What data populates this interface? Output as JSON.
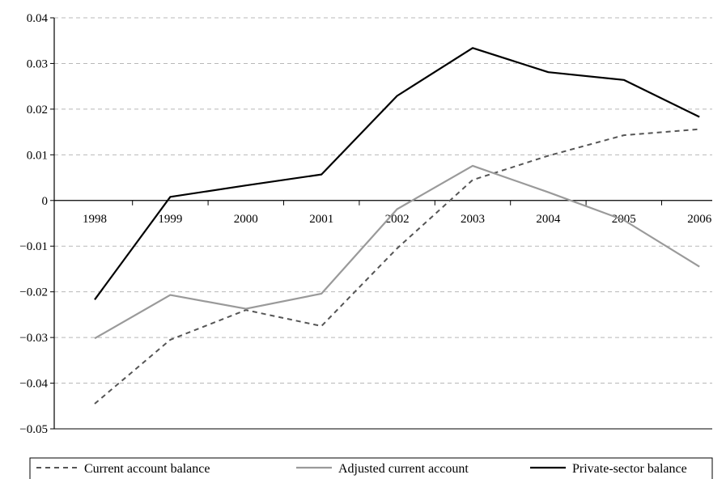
{
  "chart_data": {
    "type": "line",
    "title": "",
    "xlabel": "",
    "ylabel": "",
    "categories": [
      "1998",
      "1999",
      "2000",
      "2001",
      "2002",
      "2003",
      "2004",
      "2005",
      "2006"
    ],
    "ylim": [
      -0.05,
      0.04
    ],
    "yticks": [
      0.04,
      0.03,
      0.02,
      0.01,
      0,
      -0.01,
      -0.02,
      -0.03,
      -0.04,
      -0.05
    ],
    "ytick_labels": [
      "0.04",
      "0.03",
      "0.02",
      "0.01",
      "0",
      "−0.01",
      "−0.02",
      "−0.03",
      "−0.04",
      "−0.05"
    ],
    "grid": "horizontal dashed",
    "legend_position": "bottom",
    "series": [
      {
        "name": "Current account balance",
        "values": [
          -0.0445,
          -0.0305,
          -0.024,
          -0.0275,
          -0.0105,
          0.0045,
          0.0098,
          0.0143,
          0.0156
        ],
        "color": "#555555",
        "dash": "6,5",
        "width": 2
      },
      {
        "name": "Adjusted current account",
        "values": [
          -0.0302,
          -0.0207,
          -0.0237,
          -0.0204,
          -0.0019,
          0.0076,
          0.0018,
          -0.0043,
          -0.0145
        ],
        "color": "#9a9a9a",
        "dash": "",
        "width": 2.2
      },
      {
        "name": "Private-sector balance",
        "values": [
          -0.0217,
          0.0008,
          0.0033,
          0.0057,
          0.0229,
          0.0334,
          0.0281,
          0.0264,
          0.0183
        ],
        "color": "#000000",
        "dash": "",
        "width": 2.2
      }
    ]
  }
}
